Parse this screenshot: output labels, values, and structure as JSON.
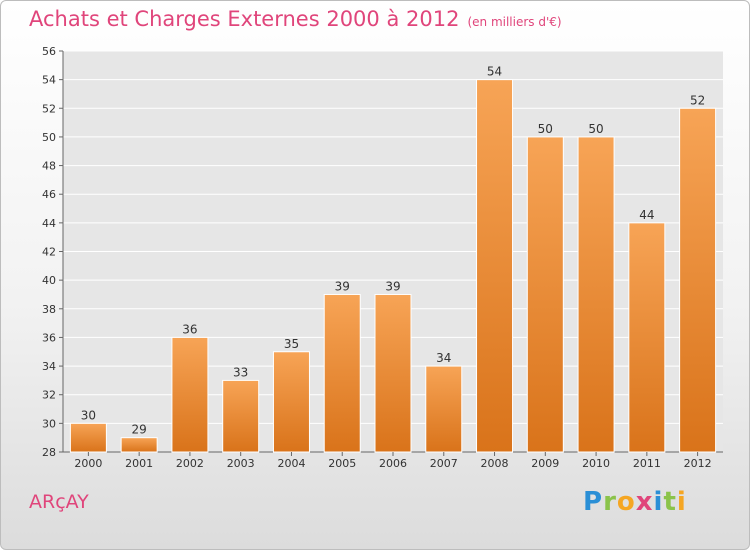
{
  "title": "Achats et Charges Externes 2000 à 2012",
  "subtitle": "(en milliers d'€)",
  "commune": "ARçAY",
  "logo": {
    "text": "Proxiti",
    "letters": [
      {
        "ch": "P",
        "color": "#2a8fd6"
      },
      {
        "ch": "r",
        "color": "#8bc34a"
      },
      {
        "ch": "o",
        "color": "#f5a623"
      },
      {
        "ch": "x",
        "color": "#e0457b"
      },
      {
        "ch": "i",
        "color": "#2a8fd6"
      },
      {
        "ch": "t",
        "color": "#8bc34a"
      },
      {
        "ch": "i",
        "color": "#f5a623"
      }
    ]
  },
  "chart_data": {
    "type": "bar",
    "categories": [
      "2000",
      "2001",
      "2002",
      "2003",
      "2004",
      "2005",
      "2006",
      "2007",
      "2008",
      "2009",
      "2010",
      "2011",
      "2012"
    ],
    "values": [
      30,
      29,
      36,
      33,
      35,
      39,
      39,
      34,
      54,
      50,
      50,
      44,
      52
    ],
    "ylim": [
      28,
      56
    ],
    "yticks": [
      28,
      30,
      32,
      34,
      36,
      38,
      40,
      42,
      44,
      46,
      48,
      50,
      52,
      54,
      56
    ],
    "grid": true,
    "bar_color_top": "#f7a456",
    "bar_color_bottom": "#d9731a"
  }
}
